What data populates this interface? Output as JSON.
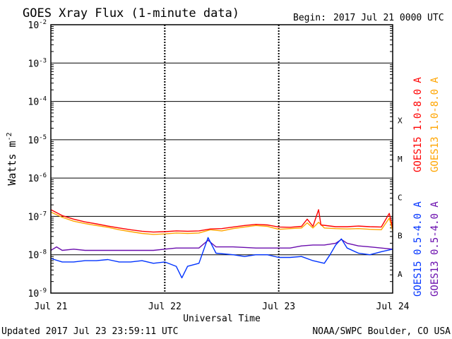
{
  "header": {
    "title": "GOES Xray Flux (1-minute data)",
    "begin_label": "Begin:",
    "begin_value": "2017 Jul 21 0000 UTC"
  },
  "footer": {
    "updated": "Updated 2017 Jul 23 23:59:11 UTC",
    "source": "NOAA/SWPC Boulder, CO USA"
  },
  "chart_data": {
    "type": "line",
    "title": "GOES Xray Flux (1-minute data)",
    "xlabel": "Universal Time",
    "ylabel_base": "Watts m",
    "ylabel_exp": "-2",
    "y_scale": "log",
    "ylim": [
      1e-09,
      0.01
    ],
    "x_unit": "days since 2017 Jul 21 0000 UTC",
    "xlim": [
      0,
      3
    ],
    "grid": true,
    "x_ticks": [
      {
        "x": 0,
        "label": "Jul 21"
      },
      {
        "x": 1,
        "label": "Jul 22"
      },
      {
        "x": 2,
        "label": "Jul 23"
      },
      {
        "x": 3,
        "label": "Jul 24"
      }
    ],
    "y_ticks": [
      {
        "exp": -9,
        "base": "10",
        "sup": "-9"
      },
      {
        "exp": -8,
        "base": "10",
        "sup": "-8"
      },
      {
        "exp": -7,
        "base": "10",
        "sup": "-7"
      },
      {
        "exp": -6,
        "base": "10",
        "sup": "-6"
      },
      {
        "exp": -5,
        "base": "10",
        "sup": "-5"
      },
      {
        "exp": -4,
        "base": "10",
        "sup": "-4"
      },
      {
        "exp": -3,
        "base": "10",
        "sup": "-3"
      },
      {
        "exp": -2,
        "base": "10",
        "sup": "-2"
      }
    ],
    "flare_classes": [
      {
        "label": "X",
        "exp": -4
      },
      {
        "label": "M",
        "exp": -5
      },
      {
        "label": "C",
        "exp": -6
      },
      {
        "label": "B",
        "exp": -7
      },
      {
        "label": "A",
        "exp": -8
      }
    ],
    "series": [
      {
        "name": "GOES13 1.0-8.0 A",
        "color": "#ffa500",
        "points": [
          [
            0.0,
            1.3e-07
          ],
          [
            0.1,
            9.5e-08
          ],
          [
            0.2,
            7.5e-08
          ],
          [
            0.3,
            6.5e-08
          ],
          [
            0.4,
            5.8e-08
          ],
          [
            0.5,
            5.2e-08
          ],
          [
            0.6,
            4.5e-08
          ],
          [
            0.7,
            4e-08
          ],
          [
            0.8,
            3.6e-08
          ],
          [
            0.9,
            3.4e-08
          ],
          [
            1.0,
            3.5e-08
          ],
          [
            1.1,
            3.7e-08
          ],
          [
            1.2,
            3.6e-08
          ],
          [
            1.3,
            3.7e-08
          ],
          [
            1.4,
            4.5e-08
          ],
          [
            1.5,
            4.2e-08
          ],
          [
            1.6,
            4.8e-08
          ],
          [
            1.7,
            5.3e-08
          ],
          [
            1.8,
            5.8e-08
          ],
          [
            1.9,
            5.5e-08
          ],
          [
            2.0,
            4.6e-08
          ],
          [
            2.1,
            4.8e-08
          ],
          [
            2.2,
            5e-08
          ],
          [
            2.25,
            6.8e-08
          ],
          [
            2.3,
            5e-08
          ],
          [
            2.35,
            7e-08
          ],
          [
            2.4,
            5e-08
          ],
          [
            2.5,
            4.8e-08
          ],
          [
            2.6,
            4.7e-08
          ],
          [
            2.7,
            4.8e-08
          ],
          [
            2.8,
            4.6e-08
          ],
          [
            2.9,
            4.5e-08
          ],
          [
            2.97,
            9e-08
          ],
          [
            3.0,
            4.2e-08
          ]
        ]
      },
      {
        "name": "GOES15 1.0-8.0 A",
        "color": "#ff0000",
        "points": [
          [
            0.0,
            1.5e-07
          ],
          [
            0.1,
            1.05e-07
          ],
          [
            0.2,
            8.5e-08
          ],
          [
            0.3,
            7.2e-08
          ],
          [
            0.4,
            6.4e-08
          ],
          [
            0.5,
            5.6e-08
          ],
          [
            0.6,
            5e-08
          ],
          [
            0.7,
            4.5e-08
          ],
          [
            0.8,
            4.1e-08
          ],
          [
            0.9,
            3.9e-08
          ],
          [
            1.0,
            4e-08
          ],
          [
            1.1,
            4.2e-08
          ],
          [
            1.2,
            4.1e-08
          ],
          [
            1.3,
            4.2e-08
          ],
          [
            1.4,
            4.7e-08
          ],
          [
            1.5,
            4.8e-08
          ],
          [
            1.6,
            5.3e-08
          ],
          [
            1.7,
            5.8e-08
          ],
          [
            1.8,
            6.2e-08
          ],
          [
            1.9,
            6e-08
          ],
          [
            2.0,
            5.3e-08
          ],
          [
            2.1,
            5.2e-08
          ],
          [
            2.2,
            5.5e-08
          ],
          [
            2.25,
            8.5e-08
          ],
          [
            2.3,
            5.5e-08
          ],
          [
            2.35,
            1.5e-07
          ],
          [
            2.37,
            6e-08
          ],
          [
            2.5,
            5.4e-08
          ],
          [
            2.6,
            5.4e-08
          ],
          [
            2.7,
            5.6e-08
          ],
          [
            2.8,
            5.4e-08
          ],
          [
            2.9,
            5.3e-08
          ],
          [
            2.97,
            1.2e-07
          ],
          [
            3.0,
            5e-08
          ]
        ]
      },
      {
        "name": "GOES13 0.5-4.0 A",
        "color": "#6a0dad",
        "points": [
          [
            0.0,
            1.3e-08
          ],
          [
            0.05,
            1.6e-08
          ],
          [
            0.1,
            1.3e-08
          ],
          [
            0.2,
            1.4e-08
          ],
          [
            0.3,
            1.3e-08
          ],
          [
            0.4,
            1.3e-08
          ],
          [
            0.5,
            1.3e-08
          ],
          [
            0.6,
            1.3e-08
          ],
          [
            0.7,
            1.3e-08
          ],
          [
            0.8,
            1.3e-08
          ],
          [
            0.9,
            1.3e-08
          ],
          [
            1.0,
            1.4e-08
          ],
          [
            1.1,
            1.5e-08
          ],
          [
            1.2,
            1.5e-08
          ],
          [
            1.3,
            1.5e-08
          ],
          [
            1.38,
            2.4e-08
          ],
          [
            1.45,
            1.6e-08
          ],
          [
            1.6,
            1.6e-08
          ],
          [
            1.8,
            1.5e-08
          ],
          [
            2.0,
            1.5e-08
          ],
          [
            2.1,
            1.5e-08
          ],
          [
            2.2,
            1.7e-08
          ],
          [
            2.3,
            1.8e-08
          ],
          [
            2.4,
            1.8e-08
          ],
          [
            2.5,
            2e-08
          ],
          [
            2.55,
            2.5e-08
          ],
          [
            2.6,
            2e-08
          ],
          [
            2.7,
            1.7e-08
          ],
          [
            2.8,
            1.6e-08
          ],
          [
            2.9,
            1.5e-08
          ],
          [
            3.0,
            1.4e-08
          ]
        ]
      },
      {
        "name": "GOES15 0.5-4.0 A",
        "color": "#0033ff",
        "points": [
          [
            0.0,
            8e-09
          ],
          [
            0.1,
            6.5e-09
          ],
          [
            0.2,
            6.5e-09
          ],
          [
            0.3,
            7e-09
          ],
          [
            0.4,
            7e-09
          ],
          [
            0.5,
            7.5e-09
          ],
          [
            0.6,
            6.5e-09
          ],
          [
            0.7,
            6.5e-09
          ],
          [
            0.8,
            7e-09
          ],
          [
            0.9,
            6e-09
          ],
          [
            1.0,
            6.5e-09
          ],
          [
            1.1,
            5e-09
          ],
          [
            1.15,
            2.5e-09
          ],
          [
            1.2,
            5e-09
          ],
          [
            1.3,
            6e-09
          ],
          [
            1.38,
            2.8e-08
          ],
          [
            1.45,
            1.1e-08
          ],
          [
            1.6,
            1e-08
          ],
          [
            1.7,
            9e-09
          ],
          [
            1.8,
            1e-08
          ],
          [
            1.9,
            1e-08
          ],
          [
            2.0,
            8.5e-09
          ],
          [
            2.1,
            8.5e-09
          ],
          [
            2.2,
            9e-09
          ],
          [
            2.3,
            7e-09
          ],
          [
            2.4,
            6e-09
          ],
          [
            2.45,
            1e-08
          ],
          [
            2.5,
            1.8e-08
          ],
          [
            2.55,
            2.6e-08
          ],
          [
            2.6,
            1.5e-08
          ],
          [
            2.7,
            1.1e-08
          ],
          [
            2.8,
            1e-08
          ],
          [
            2.9,
            1.2e-08
          ],
          [
            3.0,
            1.4e-08
          ]
        ]
      }
    ],
    "legend": [
      {
        "label": "GOES15 1.0-8.0 A",
        "color": "#ff0000"
      },
      {
        "label": "GOES13 1.0-8.0 A",
        "color": "#ffa500"
      },
      {
        "label": "GOES15 0.5-4.0 A",
        "color": "#0033ff"
      },
      {
        "label": "GOES13 0.5-4.0 A",
        "color": "#6a0dad"
      }
    ]
  }
}
